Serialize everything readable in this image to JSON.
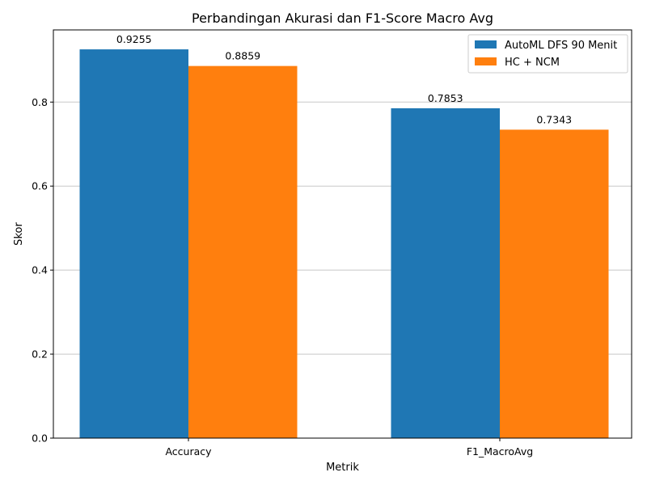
{
  "chart_data": {
    "type": "bar",
    "title": "Perbandingan Akurasi dan F1-Score Macro Avg",
    "xlabel": "Metrik",
    "ylabel": "Skor",
    "categories": [
      "Accuracy",
      "F1_MacroAvg"
    ],
    "series": [
      {
        "name": "AutoML DFS 90 Menit",
        "values": [
          0.9255,
          0.7853
        ],
        "color": "#1f77b4"
      },
      {
        "name": "HC + NCM",
        "values": [
          0.8859,
          0.7343
        ],
        "color": "#ff7f0e"
      }
    ],
    "data_labels": [
      [
        "0.9255",
        "0.7853"
      ],
      [
        "0.8859",
        "0.7343"
      ]
    ],
    "yticks": [
      0.0,
      0.2,
      0.4,
      0.6,
      0.8
    ],
    "ytick_labels": [
      "0.0",
      "0.2",
      "0.4",
      "0.6",
      "0.8"
    ],
    "ylim": [
      0,
      0.9718
    ],
    "grid": "y",
    "legend_position": "top-right"
  }
}
